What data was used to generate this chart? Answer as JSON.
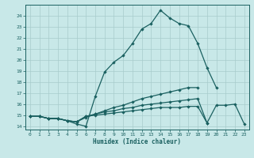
{
  "xlabel": "Humidex (Indice chaleur)",
  "xlim": [
    -0.5,
    23.5
  ],
  "ylim": [
    13.7,
    25.0
  ],
  "xticks": [
    0,
    1,
    2,
    3,
    4,
    5,
    6,
    7,
    8,
    9,
    10,
    11,
    12,
    13,
    14,
    15,
    16,
    17,
    18,
    19,
    20,
    21,
    22,
    23
  ],
  "yticks": [
    14,
    15,
    16,
    17,
    18,
    19,
    20,
    21,
    22,
    23,
    24
  ],
  "background_color": "#c8e8e8",
  "line_color": "#1a6060",
  "grid_color": "#a8cccc",
  "curve1_x": [
    0,
    1,
    2,
    3,
    4,
    5,
    6,
    7,
    8,
    9,
    10,
    11,
    12,
    13,
    14,
    15,
    16,
    17,
    18,
    19,
    20
  ],
  "curve1_y": [
    14.9,
    14.9,
    14.7,
    14.7,
    14.5,
    14.2,
    14.0,
    16.7,
    18.9,
    19.8,
    20.4,
    21.5,
    22.8,
    23.3,
    24.5,
    23.8,
    23.3,
    23.1,
    21.5,
    19.3,
    17.5
  ],
  "curve2_x": [
    0,
    1,
    2,
    3,
    4,
    5,
    6,
    7,
    8,
    9,
    10,
    11,
    12,
    13,
    14,
    15,
    16,
    17,
    18
  ],
  "curve2_y": [
    14.9,
    14.9,
    14.7,
    14.7,
    14.5,
    14.4,
    14.8,
    15.1,
    15.4,
    15.7,
    15.9,
    16.2,
    16.5,
    16.7,
    16.9,
    17.1,
    17.3,
    17.5,
    17.5
  ],
  "curve3_x": [
    0,
    1,
    2,
    3,
    4,
    5,
    6,
    7,
    8,
    9,
    10,
    11,
    12,
    13,
    14,
    15,
    16,
    17,
    18,
    19,
    20,
    21,
    22,
    23
  ],
  "curve3_y": [
    14.9,
    14.9,
    14.7,
    14.7,
    14.5,
    14.4,
    14.9,
    15.1,
    15.3,
    15.4,
    15.6,
    15.7,
    15.9,
    16.0,
    16.1,
    16.2,
    16.3,
    16.4,
    16.5,
    14.3,
    15.9,
    15.9,
    16.0,
    14.2
  ],
  "curve4_x": [
    0,
    1,
    2,
    3,
    4,
    5,
    6,
    7,
    8,
    9,
    10,
    11,
    12,
    13,
    14,
    15,
    16,
    17,
    18,
    19
  ],
  "curve4_y": [
    14.9,
    14.9,
    14.7,
    14.7,
    14.5,
    14.4,
    14.9,
    15.0,
    15.1,
    15.2,
    15.3,
    15.4,
    15.5,
    15.6,
    15.7,
    15.7,
    15.7,
    15.8,
    15.8,
    14.3
  ]
}
